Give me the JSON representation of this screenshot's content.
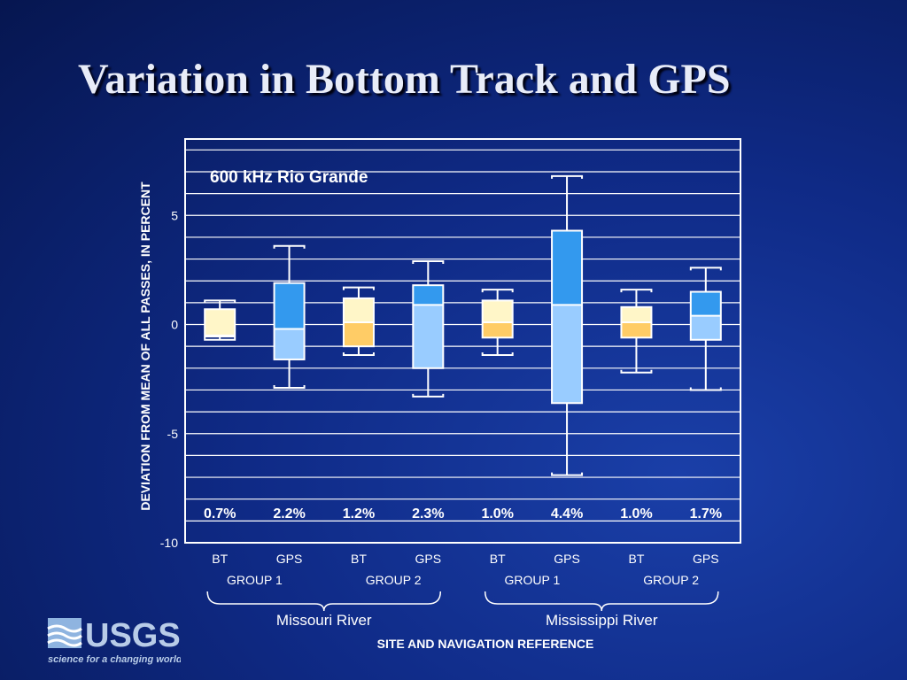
{
  "slide": {
    "title": "Variation in Bottom Track and GPS"
  },
  "logo": {
    "name": "USGS",
    "tagline": "science for a changing world"
  },
  "colors": {
    "bt_upper": "#fff6c8",
    "bt_lower": "#ffcc66",
    "gps_upper": "#3399ee",
    "gps_lower": "#99ccff",
    "grid": "#ffffff",
    "text": "#ffffff"
  },
  "chart_data": {
    "type": "box",
    "annotation": "600 kHz Rio Grande",
    "ylabel": "DEVIATION FROM MEAN OF ALL PASSES, IN PERCENT",
    "xlabel": "SITE AND NAVIGATION REFERENCE",
    "ylim": [
      -10,
      8.5
    ],
    "yticks": [
      5,
      0,
      -5,
      -10
    ],
    "grid": true,
    "boxes": [
      {
        "label": "BT",
        "kind": "bt",
        "whisker_low": -0.7,
        "q1": -0.55,
        "median": -0.5,
        "q3": 0.7,
        "whisker_high": 1.1,
        "pct": "0.7%"
      },
      {
        "label": "GPS",
        "kind": "gps",
        "whisker_low": -2.9,
        "q1": -1.6,
        "median": -0.2,
        "q3": 1.9,
        "whisker_high": 3.6,
        "pct": "2.2%"
      },
      {
        "label": "BT",
        "kind": "bt",
        "whisker_low": -1.4,
        "q1": -1.0,
        "median": 0.1,
        "q3": 1.2,
        "whisker_high": 1.7,
        "pct": "1.2%"
      },
      {
        "label": "GPS",
        "kind": "gps",
        "whisker_low": -3.3,
        "q1": -2.0,
        "median": 0.9,
        "q3": 1.8,
        "whisker_high": 2.9,
        "pct": "2.3%"
      },
      {
        "label": "BT",
        "kind": "bt",
        "whisker_low": -1.4,
        "q1": -0.6,
        "median": 0.1,
        "q3": 1.1,
        "whisker_high": 1.6,
        "pct": "1.0%"
      },
      {
        "label": "GPS",
        "kind": "gps",
        "whisker_low": -6.9,
        "q1": -3.6,
        "median": 0.9,
        "q3": 4.3,
        "whisker_high": 6.8,
        "pct": "4.4%"
      },
      {
        "label": "BT",
        "kind": "bt",
        "whisker_low": -2.2,
        "q1": -0.6,
        "median": 0.1,
        "q3": 0.8,
        "whisker_high": 1.6,
        "pct": "1.0%"
      },
      {
        "label": "GPS",
        "kind": "gps",
        "whisker_low": -3.0,
        "q1": -0.7,
        "median": 0.4,
        "q3": 1.5,
        "whisker_high": 2.6,
        "pct": "1.7%"
      }
    ],
    "groups": [
      {
        "label": "GROUP 1",
        "from": 0,
        "to": 1
      },
      {
        "label": "GROUP 2",
        "from": 2,
        "to": 3
      },
      {
        "label": "GROUP 1",
        "from": 4,
        "to": 5
      },
      {
        "label": "GROUP 2",
        "from": 6,
        "to": 7
      }
    ],
    "rivers": [
      {
        "label": "Missouri River",
        "from": 0,
        "to": 3
      },
      {
        "label": "Mississippi River",
        "from": 4,
        "to": 7
      }
    ]
  }
}
